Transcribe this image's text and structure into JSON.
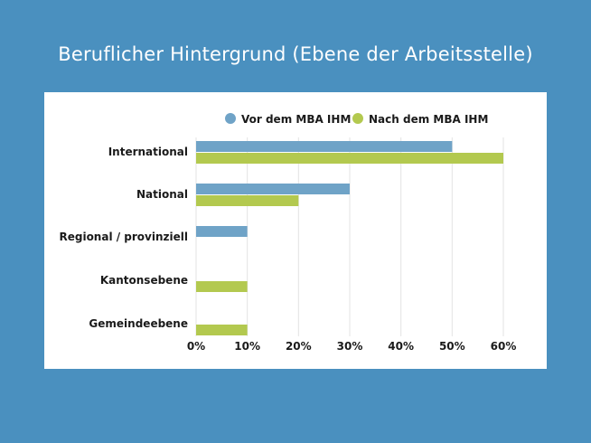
{
  "title": "Beruflicher Hintergrund (Ebene der Arbeitsstelle)",
  "chart_data": {
    "type": "bar",
    "orientation": "horizontal",
    "categories": [
      "International",
      "National",
      "Regional / provinziell",
      "Kantonsebene",
      "Gemeindeebene"
    ],
    "series": [
      {
        "name": "Vor dem MBA IHM",
        "color": "#6fa3c7",
        "values": [
          50,
          30,
          10,
          0,
          0
        ]
      },
      {
        "name": "Nach dem MBA IHM",
        "color": "#b3c94f",
        "values": [
          60,
          20,
          0,
          10,
          10
        ]
      }
    ],
    "xlim": [
      0,
      60
    ],
    "xticks": [
      0,
      10,
      20,
      30,
      40,
      50,
      60
    ],
    "xtick_labels": [
      "0%",
      "10%",
      "20%",
      "30%",
      "40%",
      "50%",
      "60%"
    ],
    "grid": true,
    "legend_position": "top"
  }
}
